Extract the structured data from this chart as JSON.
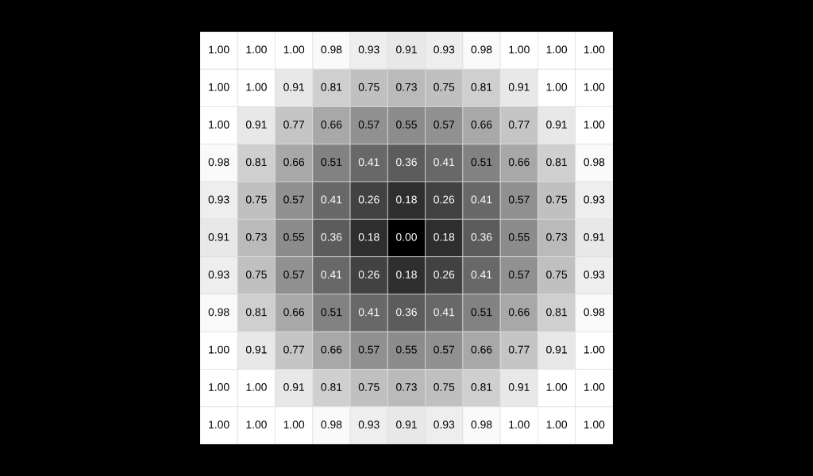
{
  "chart_data": {
    "type": "heatmap",
    "categories": [
      null,
      null,
      null,
      null,
      null,
      null,
      null,
      null,
      null,
      null,
      null
    ],
    "y_categories": [
      null,
      null,
      null,
      null,
      null,
      null,
      null,
      null,
      null,
      null,
      null
    ],
    "cells": [
      [
        1.0,
        1.0,
        1.0,
        0.98,
        0.93,
        0.91,
        0.93,
        0.98,
        1.0,
        1.0,
        1.0
      ],
      [
        1.0,
        1.0,
        0.91,
        0.81,
        0.75,
        0.73,
        0.75,
        0.81,
        0.91,
        1.0,
        1.0
      ],
      [
        1.0,
        0.91,
        0.77,
        0.66,
        0.57,
        0.55,
        0.57,
        0.66,
        0.77,
        0.91,
        1.0
      ],
      [
        0.98,
        0.81,
        0.66,
        0.51,
        0.41,
        0.36,
        0.41,
        0.51,
        0.66,
        0.81,
        0.98
      ],
      [
        0.93,
        0.75,
        0.57,
        0.41,
        0.26,
        0.18,
        0.26,
        0.41,
        0.57,
        0.75,
        0.93
      ],
      [
        0.91,
        0.73,
        0.55,
        0.36,
        0.18,
        0.0,
        0.18,
        0.36,
        0.55,
        0.73,
        0.91
      ],
      [
        0.93,
        0.75,
        0.57,
        0.41,
        0.26,
        0.18,
        0.26,
        0.41,
        0.57,
        0.75,
        0.93
      ],
      [
        0.98,
        0.81,
        0.66,
        0.51,
        0.41,
        0.36,
        0.41,
        0.51,
        0.66,
        0.81,
        0.98
      ],
      [
        1.0,
        0.91,
        0.77,
        0.66,
        0.57,
        0.55,
        0.57,
        0.66,
        0.77,
        0.91,
        1.0
      ],
      [
        1.0,
        1.0,
        0.91,
        0.81,
        0.75,
        0.73,
        0.75,
        0.81,
        0.91,
        1.0,
        1.0
      ],
      [
        1.0,
        1.0,
        1.0,
        0.98,
        0.93,
        0.91,
        0.93,
        0.98,
        1.0,
        1.0,
        1.0
      ]
    ],
    "cell_labels": [
      [
        "1.00",
        "1.00",
        "1.00",
        "0.98",
        "0.93",
        "0.91",
        "0.93",
        "0.98",
        "1.00",
        "1.00",
        "1.00"
      ],
      [
        "1.00",
        "1.00",
        "0.91",
        "0.81",
        "0.75",
        "0.73",
        "0.75",
        "0.81",
        "0.91",
        "1.00",
        "1.00"
      ],
      [
        "1.00",
        "0.91",
        "0.77",
        "0.66",
        "0.57",
        "0.55",
        "0.57",
        "0.66",
        "0.77",
        "0.91",
        "1.00"
      ],
      [
        "0.98",
        "0.81",
        "0.66",
        "0.51",
        "0.41",
        "0.36",
        "0.41",
        "0.51",
        "0.66",
        "0.81",
        "0.98"
      ],
      [
        "0.93",
        "0.75",
        "0.57",
        "0.41",
        "0.26",
        "0.18",
        "0.26",
        "0.41",
        "0.57",
        "0.75",
        "0.93"
      ],
      [
        "0.91",
        "0.73",
        "0.55",
        "0.36",
        "0.18",
        "0.00",
        "0.18",
        "0.36",
        "0.55",
        "0.73",
        "0.91"
      ],
      [
        "0.93",
        "0.75",
        "0.57",
        "0.41",
        "0.26",
        "0.18",
        "0.26",
        "0.41",
        "0.57",
        "0.75",
        "0.93"
      ],
      [
        "0.98",
        "0.81",
        "0.66",
        "0.51",
        "0.41",
        "0.36",
        "0.41",
        "0.51",
        "0.66",
        "0.81",
        "0.98"
      ],
      [
        "1.00",
        "0.91",
        "0.77",
        "0.66",
        "0.57",
        "0.55",
        "0.57",
        "0.66",
        "0.77",
        "0.91",
        "1.00"
      ],
      [
        "1.00",
        "1.00",
        "0.91",
        "0.81",
        "0.75",
        "0.73",
        "0.75",
        "0.81",
        "0.91",
        "1.00",
        "1.00"
      ],
      [
        "1.00",
        "1.00",
        "1.00",
        "0.98",
        "0.93",
        "0.91",
        "0.93",
        "0.98",
        "1.00",
        "1.00",
        "1.00"
      ]
    ]
  }
}
